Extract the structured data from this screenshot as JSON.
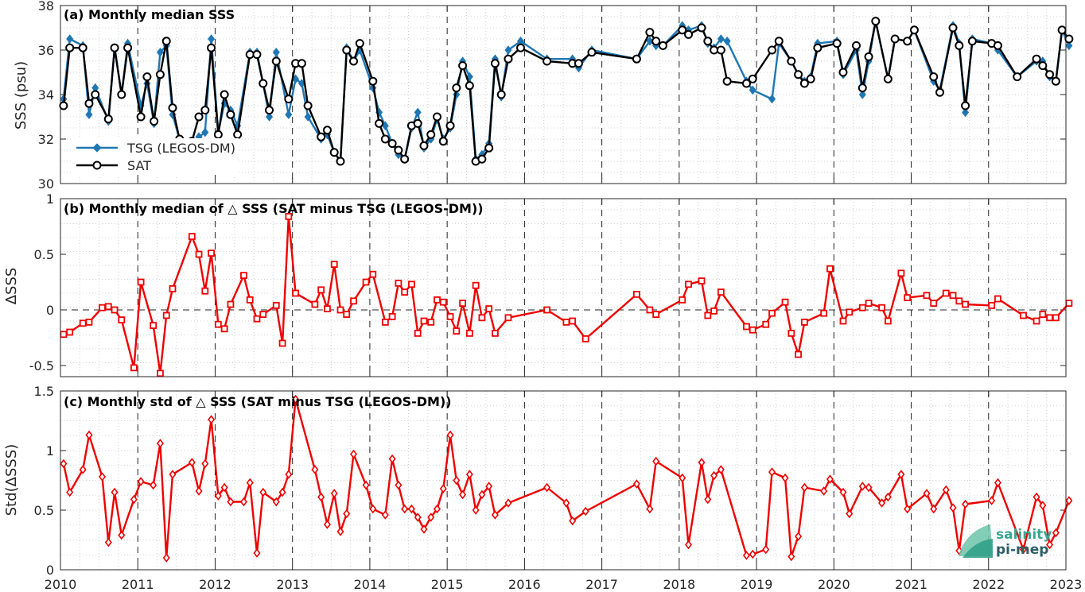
{
  "colors": {
    "tsg": "#1f77b4",
    "sat": "#000000",
    "delta": "#ee0000",
    "logo_teal": "#3aa58f",
    "logo_dark": "#2b5f66"
  },
  "logo": {
    "line1": "salinity",
    "line2": "pi-mep"
  },
  "x_ticks": [
    "2010",
    "2011",
    "2012",
    "2013",
    "2014",
    "2015",
    "2016",
    "2017",
    "2018",
    "2019",
    "2020",
    "2021",
    "2022",
    "2023"
  ],
  "chart_data": [
    {
      "type": "line",
      "title": "(a) Monthly median SSS",
      "ylabel": "SSS (psu)",
      "ylim": [
        30,
        38
      ],
      "y_ticks": [
        "30",
        "32",
        "34",
        "36",
        "38"
      ],
      "xlim": [
        2010,
        2023
      ],
      "grid": true,
      "legend": {
        "placement": "bottom-left",
        "entries": [
          "TSG (LEGOS-DM)",
          "SAT"
        ]
      },
      "series": [
        {
          "name": "TSG (LEGOS-DM)",
          "marker": "diamond",
          "x": [
            2010.04,
            2010.12,
            2010.29,
            2010.37,
            2010.45,
            2010.62,
            2010.7,
            2010.79,
            2010.87,
            2011.04,
            2011.12,
            2011.21,
            2011.29,
            2011.37,
            2011.45,
            2011.54,
            2011.7,
            2011.79,
            2011.87,
            2011.95,
            2012.04,
            2012.12,
            2012.2,
            2012.29,
            2012.45,
            2012.54,
            2012.62,
            2012.7,
            2012.79,
            2012.95,
            2013.04,
            2013.12,
            2013.2,
            2013.37,
            2013.45,
            2013.54,
            2013.62,
            2013.7,
            2013.79,
            2013.87,
            2014.04,
            2014.12,
            2014.2,
            2014.29,
            2014.37,
            2014.45,
            2014.54,
            2014.62,
            2014.7,
            2014.79,
            2014.87,
            2014.95,
            2015.04,
            2015.12,
            2015.2,
            2015.29,
            2015.37,
            2015.45,
            2015.54,
            2015.62,
            2015.7,
            2015.79,
            2015.95,
            2016.29,
            2016.62,
            2016.7,
            2016.87,
            2017.45,
            2017.62,
            2017.7,
            2017.79,
            2018.04,
            2018.12,
            2018.29,
            2018.37,
            2018.45,
            2018.54,
            2018.62,
            2018.87,
            2018.95,
            2019.2,
            2019.29,
            2019.45,
            2019.54,
            2019.62,
            2019.7,
            2019.79,
            2020.04,
            2020.12,
            2020.29,
            2020.37,
            2020.45,
            2020.54,
            2020.7,
            2020.79,
            2020.95,
            2021.04,
            2021.29,
            2021.37,
            2021.54,
            2021.62,
            2021.7,
            2021.79,
            2022.04,
            2022.12,
            2022.37,
            2022.62,
            2022.7,
            2022.79,
            2022.87,
            2022.95,
            2023.04
          ],
          "y": [
            33.8,
            36.5,
            36.2,
            33.1,
            34.3,
            32.8,
            36.1,
            34.0,
            36.3,
            33.5,
            34.5,
            32.7,
            35.9,
            36.2,
            33.1,
            32.0,
            31.4,
            32.1,
            32.3,
            36.5,
            32.3,
            33.6,
            33.3,
            32.6,
            35.9,
            35.9,
            34.5,
            33.0,
            35.9,
            33.1,
            34.7,
            34.5,
            33.0,
            32.0,
            32.2,
            31.4,
            31.0,
            36.1,
            35.5,
            36.0,
            34.3,
            33.2,
            32.6,
            31.8,
            31.3,
            31.1,
            32.5,
            33.2,
            31.6,
            32.0,
            32.9,
            32.0,
            32.5,
            34.0,
            35.5,
            34.8,
            31.1,
            31.3,
            31.8,
            35.6,
            33.9,
            36.0,
            36.4,
            35.6,
            35.6,
            35.2,
            36.0,
            35.6,
            36.4,
            36.2,
            36.2,
            37.1,
            36.9,
            37.1,
            36.3,
            36.1,
            36.5,
            36.4,
            34.6,
            34.2,
            33.8,
            36.3,
            35.5,
            34.9,
            34.6,
            34.8,
            36.3,
            36.4,
            34.9,
            36.0,
            34.0,
            35.5,
            37.3,
            34.7,
            36.5,
            36.4,
            36.9,
            34.6,
            34.2,
            37.1,
            36.3,
            33.2,
            36.5,
            36.3,
            36.0,
            34.8,
            35.5,
            35.5,
            34.8,
            34.6,
            36.9,
            36.2
          ]
        },
        {
          "name": "SAT",
          "marker": "circle",
          "x": [
            2010.04,
            2010.12,
            2010.29,
            2010.37,
            2010.45,
            2010.62,
            2010.7,
            2010.79,
            2010.87,
            2011.04,
            2011.12,
            2011.21,
            2011.29,
            2011.37,
            2011.45,
            2011.54,
            2011.7,
            2011.79,
            2011.87,
            2011.95,
            2012.04,
            2012.12,
            2012.2,
            2012.29,
            2012.45,
            2012.54,
            2012.62,
            2012.7,
            2012.79,
            2012.95,
            2013.04,
            2013.12,
            2013.2,
            2013.37,
            2013.45,
            2013.54,
            2013.62,
            2013.7,
            2013.79,
            2013.87,
            2014.04,
            2014.12,
            2014.2,
            2014.29,
            2014.37,
            2014.45,
            2014.54,
            2014.62,
            2014.7,
            2014.79,
            2014.87,
            2014.95,
            2015.04,
            2015.12,
            2015.2,
            2015.29,
            2015.37,
            2015.45,
            2015.54,
            2015.62,
            2015.7,
            2015.79,
            2015.95,
            2016.29,
            2016.62,
            2016.7,
            2016.87,
            2017.45,
            2017.62,
            2017.7,
            2017.79,
            2018.04,
            2018.12,
            2018.29,
            2018.37,
            2018.45,
            2018.54,
            2018.62,
            2018.87,
            2018.95,
            2019.2,
            2019.29,
            2019.45,
            2019.54,
            2019.62,
            2019.7,
            2019.79,
            2020.04,
            2020.12,
            2020.29,
            2020.37,
            2020.45,
            2020.54,
            2020.7,
            2020.79,
            2020.95,
            2021.04,
            2021.29,
            2021.37,
            2021.54,
            2021.62,
            2021.7,
            2021.79,
            2022.04,
            2022.12,
            2022.37,
            2022.62,
            2022.7,
            2022.79,
            2022.87,
            2022.95,
            2023.04
          ],
          "y": [
            33.5,
            36.1,
            36.1,
            33.6,
            34.0,
            32.9,
            36.1,
            34.0,
            36.1,
            33.0,
            34.8,
            32.8,
            34.9,
            36.4,
            33.4,
            32.0,
            31.9,
            33.0,
            33.3,
            36.1,
            32.2,
            34.0,
            33.1,
            32.2,
            35.8,
            35.8,
            34.5,
            33.3,
            35.5,
            33.8,
            35.4,
            35.4,
            33.5,
            32.1,
            32.4,
            31.4,
            31.0,
            36.0,
            35.5,
            36.3,
            34.6,
            32.7,
            32.0,
            31.8,
            31.5,
            31.1,
            32.6,
            32.7,
            31.7,
            32.2,
            33.0,
            31.9,
            32.6,
            34.3,
            35.3,
            34.4,
            31.0,
            31.1,
            31.6,
            35.4,
            34.0,
            35.6,
            36.1,
            35.5,
            35.4,
            35.4,
            35.9,
            35.6,
            36.8,
            36.4,
            36.2,
            36.9,
            36.7,
            37.0,
            36.4,
            36.0,
            36.0,
            34.6,
            34.5,
            34.7,
            36.0,
            36.4,
            35.5,
            34.9,
            34.5,
            34.7,
            36.1,
            36.3,
            35.0,
            36.2,
            34.3,
            35.7,
            37.3,
            34.7,
            36.5,
            36.4,
            36.9,
            34.8,
            34.1,
            37.0,
            36.2,
            33.5,
            36.4,
            36.3,
            36.2,
            34.8,
            35.6,
            35.3,
            34.9,
            34.6,
            36.9,
            36.5
          ]
        }
      ]
    },
    {
      "type": "line",
      "title": "(b) Monthly median of △ SSS (SAT minus TSG (LEGOS-DM))",
      "ylabel": "ΔSSS",
      "ylim": [
        -0.6,
        1
      ],
      "y_ticks": [
        "-0.5",
        "0",
        "0.5",
        "1"
      ],
      "xlim": [
        2010,
        2023
      ],
      "grid": true,
      "series": [
        {
          "name": "",
          "marker": "square",
          "x": [
            2010.04,
            2010.12,
            2010.29,
            2010.37,
            2010.54,
            2010.62,
            2010.7,
            2010.79,
            2010.95,
            2011.04,
            2011.2,
            2011.29,
            2011.37,
            2011.45,
            2011.7,
            2011.79,
            2011.87,
            2011.95,
            2012.04,
            2012.12,
            2012.2,
            2012.37,
            2012.45,
            2012.54,
            2012.62,
            2012.79,
            2012.87,
            2012.95,
            2013.04,
            2013.29,
            2013.37,
            2013.45,
            2013.54,
            2013.62,
            2013.7,
            2013.79,
            2013.95,
            2014.04,
            2014.2,
            2014.29,
            2014.37,
            2014.45,
            2014.54,
            2014.62,
            2014.7,
            2014.79,
            2014.87,
            2014.95,
            2015.04,
            2015.12,
            2015.2,
            2015.29,
            2015.37,
            2015.45,
            2015.54,
            2015.62,
            2015.79,
            2016.29,
            2016.54,
            2016.62,
            2016.79,
            2017.45,
            2017.62,
            2017.7,
            2018.04,
            2018.12,
            2018.29,
            2018.37,
            2018.45,
            2018.54,
            2018.87,
            2018.95,
            2019.12,
            2019.2,
            2019.37,
            2019.45,
            2019.54,
            2019.62,
            2019.87,
            2019.95,
            2020.12,
            2020.2,
            2020.37,
            2020.45,
            2020.62,
            2020.7,
            2020.87,
            2020.95,
            2021.2,
            2021.29,
            2021.45,
            2021.54,
            2021.62,
            2021.7,
            2022.04,
            2022.12,
            2022.45,
            2022.62,
            2022.7,
            2022.79,
            2022.87,
            2023.04
          ],
          "y": [
            -0.22,
            -0.2,
            -0.12,
            -0.11,
            0.02,
            0.03,
            0.0,
            -0.09,
            -0.52,
            0.25,
            -0.14,
            -0.57,
            -0.05,
            0.19,
            0.66,
            0.5,
            0.17,
            0.51,
            -0.13,
            -0.17,
            0.05,
            0.31,
            0.09,
            -0.08,
            -0.04,
            0.04,
            -0.3,
            0.84,
            0.15,
            0.05,
            0.18,
            0.01,
            0.41,
            0.0,
            -0.04,
            0.08,
            0.25,
            0.32,
            -0.11,
            -0.06,
            0.24,
            0.16,
            0.23,
            -0.21,
            -0.1,
            -0.11,
            0.09,
            0.07,
            -0.06,
            -0.19,
            0.06,
            -0.21,
            0.22,
            -0.07,
            0.01,
            -0.21,
            -0.07,
            0.0,
            -0.11,
            -0.1,
            -0.26,
            0.14,
            0.0,
            -0.04,
            0.09,
            0.23,
            0.26,
            -0.05,
            -0.01,
            0.16,
            -0.15,
            -0.18,
            -0.13,
            -0.03,
            0.07,
            -0.21,
            -0.4,
            -0.11,
            -0.03,
            0.37,
            -0.1,
            -0.02,
            0.02,
            0.06,
            0.02,
            -0.1,
            0.33,
            0.11,
            0.13,
            0.06,
            0.15,
            0.13,
            0.08,
            0.05,
            0.04,
            0.1,
            -0.05,
            -0.1,
            -0.04,
            -0.07,
            -0.07,
            0.06
          ]
        }
      ]
    },
    {
      "type": "line",
      "title": "(c) Monthly std of △ SSS (SAT minus TSG (LEGOS-DM))",
      "ylabel": "Std(ΔSSS)",
      "ylim": [
        0,
        1.5
      ],
      "y_ticks": [
        "0",
        "0.5",
        "1",
        "1.5"
      ],
      "xlim": [
        2010,
        2023
      ],
      "grid": true,
      "series": [
        {
          "name": "",
          "marker": "diamond",
          "x": [
            2010.04,
            2010.12,
            2010.29,
            2010.37,
            2010.54,
            2010.62,
            2010.7,
            2010.79,
            2010.95,
            2011.04,
            2011.2,
            2011.29,
            2011.37,
            2011.45,
            2011.7,
            2011.79,
            2011.87,
            2011.95,
            2012.04,
            2012.12,
            2012.2,
            2012.37,
            2012.45,
            2012.54,
            2012.62,
            2012.79,
            2012.87,
            2012.95,
            2013.04,
            2013.29,
            2013.37,
            2013.45,
            2013.54,
            2013.62,
            2013.7,
            2013.79,
            2013.95,
            2014.04,
            2014.2,
            2014.29,
            2014.37,
            2014.45,
            2014.54,
            2014.62,
            2014.7,
            2014.79,
            2014.87,
            2014.95,
            2015.04,
            2015.12,
            2015.2,
            2015.29,
            2015.37,
            2015.45,
            2015.54,
            2015.62,
            2015.79,
            2016.29,
            2016.54,
            2016.62,
            2016.79,
            2017.45,
            2017.62,
            2017.7,
            2018.04,
            2018.12,
            2018.29,
            2018.37,
            2018.45,
            2018.54,
            2018.87,
            2018.95,
            2019.12,
            2019.2,
            2019.37,
            2019.45,
            2019.54,
            2019.62,
            2019.87,
            2019.95,
            2020.12,
            2020.2,
            2020.37,
            2020.45,
            2020.62,
            2020.7,
            2020.87,
            2020.95,
            2021.2,
            2021.29,
            2021.45,
            2021.54,
            2021.62,
            2021.7,
            2022.04,
            2022.12,
            2022.45,
            2022.62,
            2022.7,
            2022.79,
            2022.87,
            2023.04
          ],
          "y": [
            0.89,
            0.65,
            0.84,
            1.13,
            0.78,
            0.23,
            0.65,
            0.29,
            0.59,
            0.74,
            0.71,
            1.06,
            0.1,
            0.8,
            0.9,
            0.66,
            0.89,
            1.26,
            0.62,
            0.69,
            0.57,
            0.57,
            0.73,
            0.14,
            0.65,
            0.57,
            0.65,
            0.8,
            1.43,
            0.84,
            0.61,
            0.38,
            0.64,
            0.32,
            0.47,
            0.97,
            0.71,
            0.51,
            0.46,
            0.93,
            0.71,
            0.51,
            0.51,
            0.44,
            0.34,
            0.44,
            0.51,
            0.68,
            1.13,
            0.75,
            0.63,
            0.8,
            0.5,
            0.63,
            0.7,
            0.46,
            0.56,
            0.69,
            0.56,
            0.41,
            0.49,
            0.72,
            0.51,
            0.91,
            0.77,
            0.21,
            0.9,
            0.59,
            0.79,
            0.84,
            0.12,
            0.13,
            0.17,
            0.82,
            0.77,
            0.11,
            0.28,
            0.69,
            0.66,
            0.76,
            0.65,
            0.47,
            0.7,
            0.69,
            0.56,
            0.61,
            0.8,
            0.51,
            0.64,
            0.51,
            0.67,
            0.52,
            0.16,
            0.55,
            0.58,
            0.73,
            0.17,
            0.61,
            0.54,
            0.21,
            0.31,
            0.58
          ]
        }
      ]
    }
  ]
}
